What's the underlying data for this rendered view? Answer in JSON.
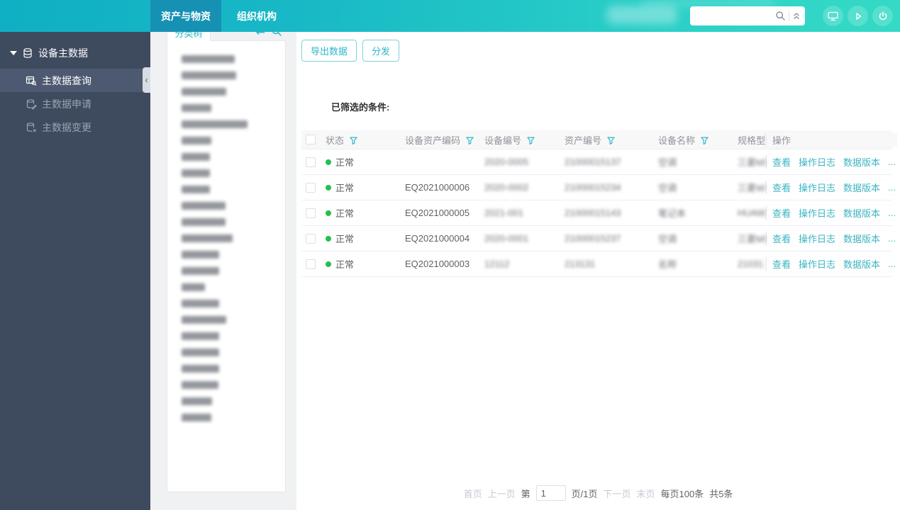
{
  "topbar": {
    "tabs": [
      {
        "label": "资产与物资",
        "active": true
      },
      {
        "label": "组织机构",
        "active": false
      }
    ],
    "search_value": "",
    "icons": [
      "monitor-icon",
      "play-icon",
      "power-icon"
    ],
    "colors": {
      "bar_start": "#10b0c4",
      "bar_end": "#35dac5",
      "active_tab": "#1691b4"
    }
  },
  "sidebar": {
    "group_label": "设备主数据",
    "items": [
      {
        "label": "主数据查询",
        "icon": "db-search-icon",
        "active": true
      },
      {
        "label": "主数据申请",
        "icon": "db-edit-icon",
        "active": false
      },
      {
        "label": "主数据变更",
        "icon": "db-change-icon",
        "active": false
      }
    ],
    "colors": {
      "bg": "#3e4a5e",
      "active_bg": "#4d5970"
    }
  },
  "tree": {
    "tab_label": "分类树",
    "tools": [
      "swap-icon",
      "search-icon"
    ],
    "blurred_item_widths": [
      75,
      77,
      63,
      42,
      93,
      42,
      40,
      40,
      40,
      62,
      62,
      72,
      53,
      53,
      33,
      53,
      63,
      53,
      53,
      53,
      52,
      43,
      42
    ]
  },
  "main": {
    "buttons": [
      {
        "label": "导出数据"
      },
      {
        "label": "分发"
      }
    ],
    "filter_label": "已筛选的条件:",
    "table": {
      "columns": [
        {
          "key": "status",
          "label": "状态",
          "filter": true
        },
        {
          "key": "asset_code",
          "label": "设备资产编码",
          "filter": true
        },
        {
          "key": "device_no",
          "label": "设备编号",
          "filter": true
        },
        {
          "key": "asset_no",
          "label": "资产编号",
          "filter": true
        },
        {
          "key": "device_name",
          "label": "设备名称",
          "filter": true
        },
        {
          "key": "model",
          "label": "规格型号",
          "filter": false
        }
      ],
      "ops_label": "操作",
      "ops_links": [
        "查看",
        "操作日志",
        "数据版本",
        "..."
      ],
      "rows": [
        {
          "status": "正常",
          "asset_code": "",
          "device_no": "2020-0005",
          "asset_no": "21000015137",
          "device_name": "空调",
          "model": "三菱MSZ",
          "blurred": [
            "device_no",
            "asset_no",
            "device_name",
            "model"
          ]
        },
        {
          "status": "正常",
          "asset_code": "EQ2021000006",
          "device_no": "2020-0002",
          "asset_no": "21000015234",
          "device_name": "空调",
          "model": "三菱WSZ",
          "blurred": [
            "device_no",
            "asset_no",
            "device_name",
            "model"
          ]
        },
        {
          "status": "正常",
          "asset_code": "EQ2021000005",
          "device_no": "2021-001",
          "asset_no": "21000015143",
          "device_name": "笔记本",
          "model": "HUAWEI",
          "blurred": [
            "device_no",
            "asset_no",
            "device_name",
            "model"
          ]
        },
        {
          "status": "正常",
          "asset_code": "EQ2021000004",
          "device_no": "2020-0001",
          "asset_no": "21000015237",
          "device_name": "空调",
          "model": "三菱MSZ",
          "blurred": [
            "device_no",
            "asset_no",
            "device_name",
            "model"
          ]
        },
        {
          "status": "正常",
          "asset_code": "EQ2021000003",
          "device_no": "12112",
          "asset_no": "213131",
          "device_name": "名称",
          "model": "21031",
          "blurred": [
            "device_no",
            "asset_no",
            "device_name",
            "model"
          ]
        }
      ],
      "status_dot_color": "#22c14e"
    },
    "pagination": {
      "first": "首页",
      "prev": "上一页",
      "page_prefix": "第",
      "page_value": "1",
      "page_suffix": "页/1页",
      "next": "下一页",
      "last": "末页",
      "per_page": "每页100条",
      "total": "共5条"
    }
  },
  "accent_color": "#2bb8c9",
  "link_color": "#3bb4c1"
}
